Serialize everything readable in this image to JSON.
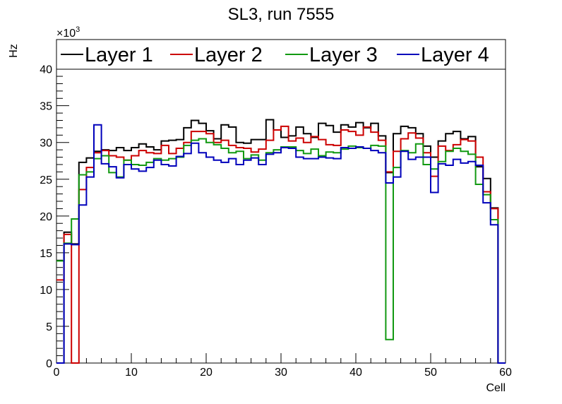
{
  "chart_data": {
    "type": "line",
    "style": "step-histogram",
    "title": "SL3, run 7555",
    "xlabel": "Cell",
    "ylabel": "Hz",
    "y_multiplier_label": "×10",
    "y_multiplier_exponent": "3",
    "xlim": [
      0,
      60
    ],
    "ylim": [
      0,
      44
    ],
    "x_ticks": [
      0,
      10,
      20,
      30,
      40,
      50,
      60
    ],
    "y_ticks": [
      0,
      5,
      10,
      15,
      20,
      25,
      30,
      35,
      40
    ],
    "bin_edges_start": 0,
    "bin_width": 1,
    "legend_position": "top",
    "series": [
      {
        "name": "Layer 1",
        "color": "#000000",
        "values": [
          0,
          17.8,
          16.2,
          27.3,
          27.9,
          28.8,
          29.0,
          28.9,
          29.3,
          28.9,
          29.3,
          29.8,
          29.4,
          29.0,
          30.2,
          30.3,
          30.4,
          32.0,
          33.0,
          32.6,
          31.6,
          30.5,
          32.4,
          32.1,
          30.0,
          29.9,
          30.4,
          30.4,
          33.1,
          31.7,
          30.7,
          30.9,
          32.1,
          31.2,
          30.7,
          32.6,
          32.3,
          31.4,
          32.4,
          32.1,
          32.7,
          32.0,
          32.6,
          30.9,
          25.9,
          31.2,
          32.2,
          32.0,
          31.2,
          29.5,
          28.0,
          30.2,
          31.2,
          31.5,
          30.5,
          30.8,
          26.7,
          25.1,
          21.1,
          0
        ]
      },
      {
        "name": "Layer 2",
        "color": "#cc0000",
        "values": [
          11.3,
          17.5,
          0,
          23.6,
          26.6,
          28.6,
          28.9,
          28.2,
          28.0,
          27.6,
          28.2,
          28.9,
          28.6,
          28.5,
          29.6,
          28.5,
          29.2,
          30.0,
          31.5,
          31.5,
          31.2,
          30.0,
          30.3,
          29.6,
          29.3,
          29.2,
          28.7,
          29.1,
          30.3,
          31.7,
          32.2,
          30.2,
          30.6,
          30.0,
          30.8,
          30.4,
          29.7,
          29.6,
          31.7,
          31.5,
          31.0,
          32.1,
          31.4,
          30.3,
          26.0,
          28.8,
          30.5,
          31.3,
          30.6,
          28.6,
          25.4,
          29.5,
          28.9,
          29.7,
          30.4,
          30.2,
          28.0,
          23.3,
          21.0,
          0
        ]
      },
      {
        "name": "Layer 3",
        "color": "#119911",
        "values": [
          13.9,
          16.3,
          19.6,
          25.6,
          26.0,
          27.8,
          28.2,
          25.9,
          25.3,
          27.6,
          27.0,
          26.9,
          27.3,
          27.8,
          27.6,
          27.8,
          28.0,
          29.6,
          30.3,
          30.5,
          30.0,
          29.7,
          29.2,
          28.6,
          28.8,
          27.8,
          28.3,
          27.6,
          28.6,
          29.0,
          29.4,
          29.4,
          28.9,
          28.5,
          29.1,
          28.2,
          28.7,
          28.6,
          29.1,
          29.5,
          29.3,
          29.2,
          29.6,
          29.5,
          3.2,
          26.6,
          28.9,
          28.6,
          29.8,
          27.0,
          26.4,
          27.4,
          28.8,
          29.2,
          28.8,
          28.4,
          24.3,
          22.9,
          19.5,
          0
        ]
      },
      {
        "name": "Layer 4",
        "color": "#0000bb",
        "values": [
          0,
          16.2,
          16.1,
          21.5,
          25.3,
          32.4,
          27.1,
          26.7,
          25.2,
          27.0,
          26.4,
          26.1,
          26.6,
          27.6,
          27.0,
          26.8,
          28.1,
          28.5,
          29.9,
          28.6,
          28.0,
          27.6,
          27.3,
          27.8,
          27.0,
          27.6,
          27.9,
          27.0,
          28.4,
          28.6,
          29.3,
          29.2,
          28.0,
          27.8,
          27.8,
          28.0,
          27.9,
          27.8,
          29.3,
          29.2,
          29.4,
          29.2,
          28.9,
          28.6,
          24.5,
          25.3,
          28.8,
          27.7,
          28.0,
          28.0,
          23.2,
          27.1,
          26.9,
          27.7,
          27.2,
          27.4,
          26.9,
          21.8,
          18.8,
          0
        ]
      }
    ]
  }
}
